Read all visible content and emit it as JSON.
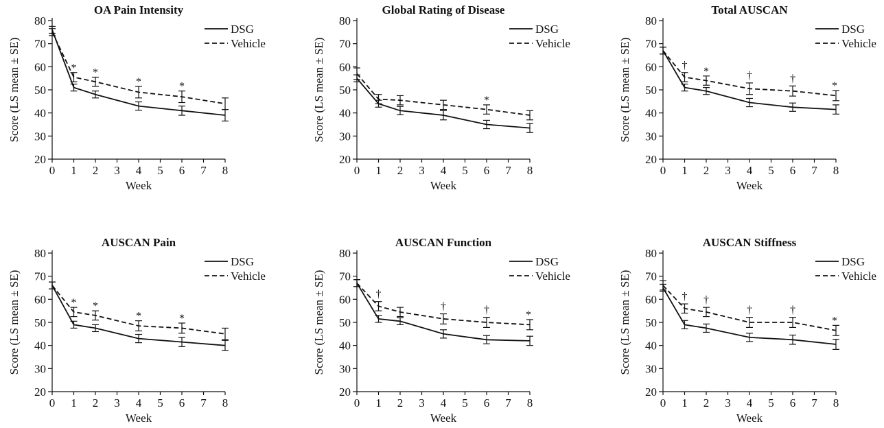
{
  "chart_data": [
    {
      "type": "line",
      "title": "OA Pain Intensity",
      "xlabel": "Week",
      "ylabel": "Score (LS mean ± SE)",
      "ylim": [
        20,
        80
      ],
      "xticks": [
        "0",
        "1",
        "2",
        "3",
        "4",
        "5",
        "6",
        "7",
        "8"
      ],
      "yticks": [
        "20",
        "30",
        "40",
        "50",
        "60",
        "70",
        "80"
      ],
      "legend_position": "top-right",
      "series": [
        {
          "name": "DSG",
          "style": "solid",
          "x": [
            0,
            1,
            2,
            4,
            6,
            8
          ],
          "y": [
            76,
            51,
            48,
            43,
            41,
            39
          ],
          "se": [
            1.5,
            1.5,
            1.5,
            1.8,
            2,
            2.5
          ]
        },
        {
          "name": "Vehicle",
          "style": "dashed",
          "x": [
            0,
            1,
            2,
            4,
            6,
            8
          ],
          "y": [
            75,
            55.5,
            53.5,
            49,
            47,
            44
          ],
          "se": [
            1.5,
            2,
            2,
            2.5,
            2.5,
            2.5
          ]
        }
      ],
      "annotations": [
        {
          "x": 1,
          "text": "*"
        },
        {
          "x": 2,
          "text": "*"
        },
        {
          "x": 4,
          "text": "*"
        },
        {
          "x": 6,
          "text": "*"
        }
      ]
    },
    {
      "type": "line",
      "title": "Global Rating of Disease",
      "xlabel": "Week",
      "ylabel": "Score (LS mean ± SE)",
      "ylim": [
        20,
        80
      ],
      "xticks": [
        "0",
        "1",
        "2",
        "3",
        "4",
        "5",
        "6",
        "7",
        "8"
      ],
      "yticks": [
        "20",
        "30",
        "40",
        "50",
        "60",
        "70",
        "80"
      ],
      "legend_position": "top-right",
      "series": [
        {
          "name": "DSG",
          "style": "solid",
          "x": [
            0,
            1,
            2,
            4,
            6,
            8
          ],
          "y": [
            55,
            44,
            41,
            39,
            35,
            33.5
          ],
          "se": [
            1.5,
            1.5,
            1.8,
            2,
            1.8,
            2
          ]
        },
        {
          "name": "Vehicle",
          "style": "dashed",
          "x": [
            0,
            1,
            2,
            4,
            6,
            8
          ],
          "y": [
            57,
            46,
            45.5,
            43.5,
            41.5,
            39
          ],
          "se": [
            2.5,
            2,
            2,
            2,
            2,
            2
          ]
        }
      ],
      "annotations": [
        {
          "x": 6,
          "text": "*"
        }
      ]
    },
    {
      "type": "line",
      "title": "Total AUSCAN",
      "xlabel": "Week",
      "ylabel": "Score (LS mean ± SE)",
      "ylim": [
        20,
        80
      ],
      "xticks": [
        "0",
        "1",
        "2",
        "3",
        "4",
        "5",
        "6",
        "7",
        "8"
      ],
      "yticks": [
        "20",
        "30",
        "40",
        "50",
        "60",
        "70",
        "80"
      ],
      "legend_position": "top-right",
      "series": [
        {
          "name": "DSG",
          "style": "solid",
          "x": [
            0,
            1,
            2,
            4,
            6,
            8
          ],
          "y": [
            67,
            51,
            49.5,
            44.5,
            42.5,
            41.5
          ],
          "se": [
            1.5,
            1.5,
            1.5,
            1.8,
            1.8,
            2
          ]
        },
        {
          "name": "Vehicle",
          "style": "dashed",
          "x": [
            0,
            1,
            2,
            4,
            6,
            8
          ],
          "y": [
            67,
            55.5,
            54,
            50.5,
            49.5,
            47.5
          ],
          "se": [
            1.5,
            2,
            2,
            2.5,
            2.2,
            2.2
          ]
        }
      ],
      "annotations": [
        {
          "x": 1,
          "text": "†"
        },
        {
          "x": 2,
          "text": "*"
        },
        {
          "x": 4,
          "text": "†"
        },
        {
          "x": 6,
          "text": "†"
        },
        {
          "x": 8,
          "text": "*"
        }
      ]
    },
    {
      "type": "line",
      "title": "AUSCAN Pain",
      "xlabel": "Week",
      "ylabel": "Score (LS mean ± SE)",
      "ylim": [
        20,
        80
      ],
      "xticks": [
        "0",
        "1",
        "2",
        "3",
        "4",
        "5",
        "6",
        "7",
        "8"
      ],
      "yticks": [
        "20",
        "30",
        "40",
        "50",
        "60",
        "70",
        "80"
      ],
      "legend_position": "top-right",
      "series": [
        {
          "name": "DSG",
          "style": "solid",
          "x": [
            0,
            1,
            2,
            4,
            6,
            8
          ],
          "y": [
            66,
            49,
            47.5,
            43,
            41.5,
            40
          ],
          "se": [
            1.5,
            1.5,
            1.5,
            1.8,
            2,
            2.2
          ]
        },
        {
          "name": "Vehicle",
          "style": "dashed",
          "x": [
            0,
            1,
            2,
            4,
            6,
            8
          ],
          "y": [
            66,
            54.5,
            53,
            48.5,
            47.5,
            45
          ],
          "se": [
            1.5,
            2,
            2,
            2.2,
            2.2,
            2.5
          ]
        }
      ],
      "annotations": [
        {
          "x": 1,
          "text": "*"
        },
        {
          "x": 2,
          "text": "*"
        },
        {
          "x": 4,
          "text": "*"
        },
        {
          "x": 6,
          "text": "*"
        }
      ]
    },
    {
      "type": "line",
      "title": "AUSCAN Function",
      "xlabel": "Week",
      "ylabel": "Score (LS mean ± SE)",
      "ylim": [
        20,
        80
      ],
      "xticks": [
        "0",
        "1",
        "2",
        "3",
        "4",
        "5",
        "6",
        "7",
        "8"
      ],
      "yticks": [
        "20",
        "30",
        "40",
        "50",
        "60",
        "70",
        "80"
      ],
      "legend_position": "top-right",
      "series": [
        {
          "name": "DSG",
          "style": "solid",
          "x": [
            0,
            1,
            2,
            4,
            6,
            8
          ],
          "y": [
            67,
            51.5,
            50.5,
            45,
            42.5,
            42
          ],
          "se": [
            1.5,
            1.5,
            1.5,
            1.8,
            1.8,
            2
          ]
        },
        {
          "name": "Vehicle",
          "style": "dashed",
          "x": [
            0,
            1,
            2,
            4,
            6,
            8
          ],
          "y": [
            67,
            57,
            54.5,
            51.5,
            50,
            49
          ],
          "se": [
            1.5,
            2,
            2,
            2.2,
            2.2,
            2.2
          ]
        }
      ],
      "annotations": [
        {
          "x": 1,
          "text": "†"
        },
        {
          "x": 4,
          "text": "†"
        },
        {
          "x": 6,
          "text": "†"
        },
        {
          "x": 8,
          "text": "*"
        }
      ]
    },
    {
      "type": "line",
      "title": "AUSCAN Stiffness",
      "xlabel": "Week",
      "ylabel": "Score (LS mean ± SE)",
      "ylim": [
        20,
        80
      ],
      "xticks": [
        "0",
        "1",
        "2",
        "3",
        "4",
        "5",
        "6",
        "7",
        "8"
      ],
      "yticks": [
        "20",
        "30",
        "40",
        "50",
        "60",
        "70",
        "80"
      ],
      "legend_position": "top-right",
      "series": [
        {
          "name": "DSG",
          "style": "solid",
          "x": [
            0,
            1,
            2,
            4,
            6,
            8
          ],
          "y": [
            65,
            49,
            47.5,
            43.5,
            42.5,
            40.5
          ],
          "se": [
            1.5,
            1.8,
            1.8,
            1.8,
            2,
            2.2
          ]
        },
        {
          "name": "Vehicle",
          "style": "dashed",
          "x": [
            0,
            1,
            2,
            4,
            6,
            8
          ],
          "y": [
            66,
            56,
            54.5,
            50,
            50,
            46.5
          ],
          "se": [
            2,
            2,
            2,
            2.2,
            2.2,
            2.2
          ]
        }
      ],
      "annotations": [
        {
          "x": 1,
          "text": "†"
        },
        {
          "x": 2,
          "text": "†"
        },
        {
          "x": 4,
          "text": "†"
        },
        {
          "x": 6,
          "text": "†"
        },
        {
          "x": 8,
          "text": "*"
        }
      ]
    }
  ]
}
